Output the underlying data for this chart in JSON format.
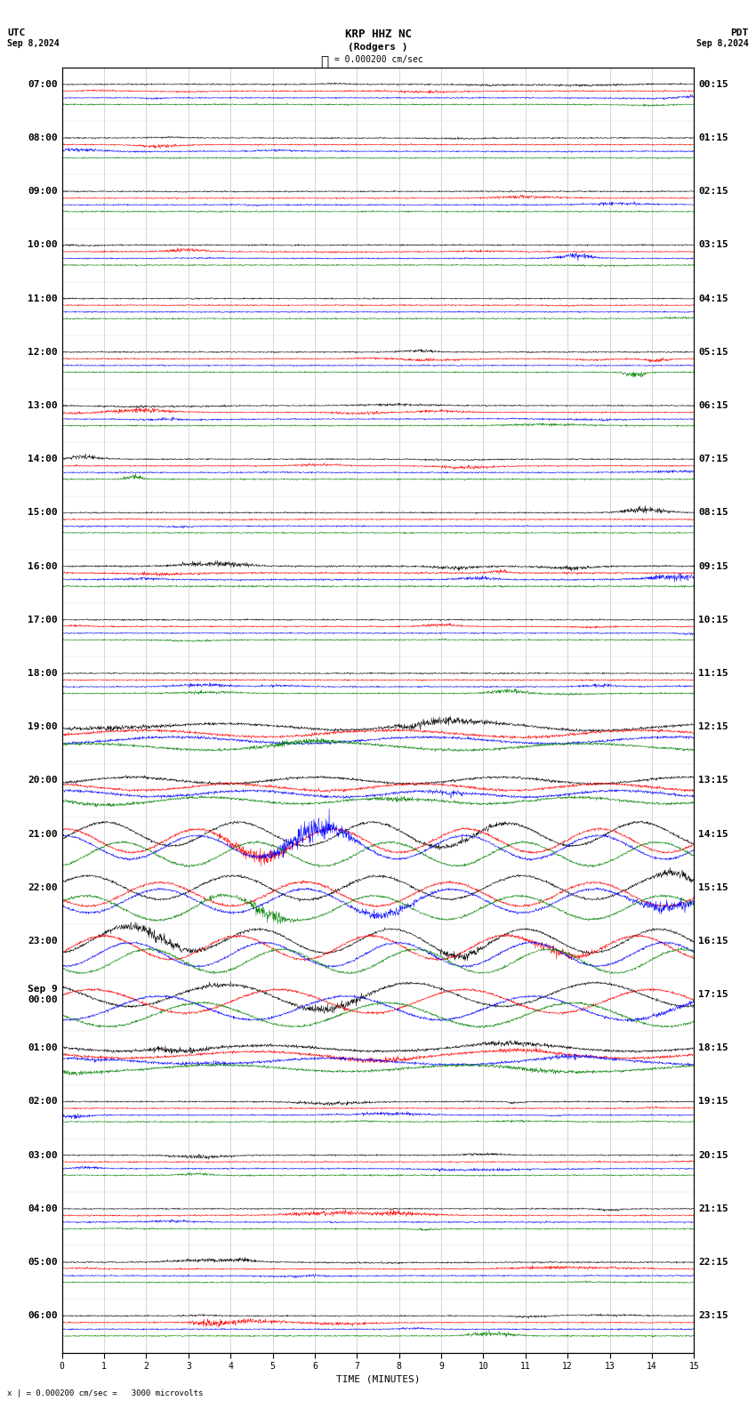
{
  "title_line1": "KRP HHZ NC",
  "title_line2": "(Rodgers )",
  "scale_label": "= 0.000200 cm/sec",
  "utc_label": "UTC",
  "utc_date": "Sep 8,2024",
  "pdt_label": "PDT",
  "pdt_date": "Sep 8,2024",
  "bottom_label": "= 0.000200 cm/sec =   3000 microvolts",
  "xlabel": "TIME (MINUTES)",
  "left_times": [
    "07:00",
    "08:00",
    "09:00",
    "10:00",
    "11:00",
    "12:00",
    "13:00",
    "14:00",
    "15:00",
    "16:00",
    "17:00",
    "18:00",
    "19:00",
    "20:00",
    "21:00",
    "22:00",
    "23:00",
    "Sep 9\n00:00",
    "01:00",
    "02:00",
    "03:00",
    "04:00",
    "05:00",
    "06:00"
  ],
  "right_times": [
    "00:15",
    "01:15",
    "02:15",
    "03:15",
    "04:15",
    "05:15",
    "06:15",
    "07:15",
    "08:15",
    "09:15",
    "10:15",
    "11:15",
    "12:15",
    "13:15",
    "14:15",
    "15:15",
    "16:15",
    "17:15",
    "18:15",
    "19:15",
    "20:15",
    "21:15",
    "22:15",
    "23:15"
  ],
  "n_rows": 24,
  "traces_per_row": 4,
  "colors": [
    "black",
    "red",
    "blue",
    "green"
  ],
  "x_ticks": [
    0,
    1,
    2,
    3,
    4,
    5,
    6,
    7,
    8,
    9,
    10,
    11,
    12,
    13,
    14,
    15
  ],
  "bg_color": "white",
  "spine_color": "black",
  "grid_color": "#888888",
  "font_size_title": 9,
  "font_size_labels": 8,
  "font_size_ticks": 7,
  "font_size_time": 8,
  "seed": 42,
  "large_wave_rows": [
    14,
    15,
    16,
    17
  ],
  "medium_wave_rows": [
    12,
    13,
    18
  ],
  "event_rows": [
    9
  ]
}
